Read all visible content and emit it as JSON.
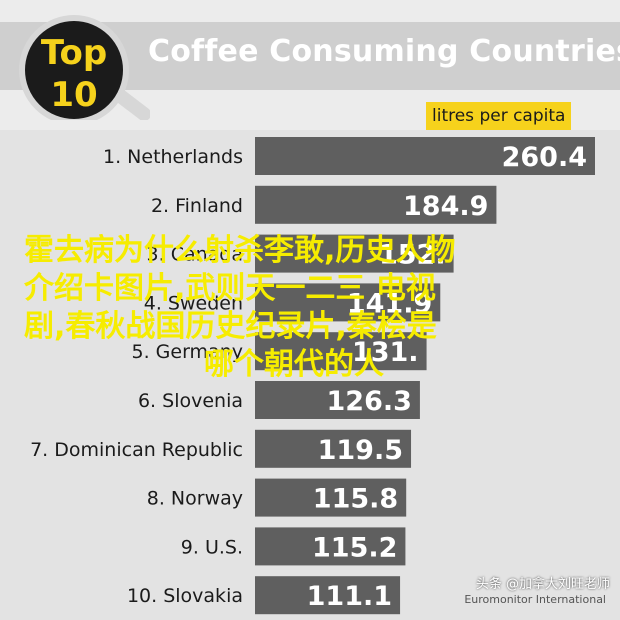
{
  "header": {
    "logo_top": "Top",
    "logo_num": "10",
    "title": "Coffee Consuming Countries",
    "unit_label": "litres per capita"
  },
  "chart_data": {
    "type": "bar",
    "orientation": "horizontal",
    "title": "Coffee Consuming Countries",
    "unit": "litres per capita",
    "categories": [
      "1. Netherlands",
      "2. Finland",
      "3. Canada",
      "4. Sweden",
      "5. Germany",
      "6. Slovenia",
      "7. Dominican Republic",
      "8. Norway",
      "9. U.S.",
      "10. Slovakia"
    ],
    "values": [
      260.4,
      184.9,
      152.1,
      141.9,
      131.4,
      126.3,
      119.5,
      115.8,
      115.2,
      111.1
    ],
    "value_labels": [
      "260.4",
      "184.9",
      "152.",
      "141.9",
      "131.",
      "126.3",
      "119.5",
      "115.8",
      "115.2",
      "111.1"
    ],
    "colors": {
      "bar": "#5f5f5f",
      "value_text": "#ffffff",
      "accent": "#f6d21c",
      "background": "#e3e3e3"
    }
  },
  "overlay": {
    "lines": [
      "霍去病为什么射杀李敢,历史人物",
      "介绍卡图片,武则天一二三 电视",
      "剧,春秋战国历史纪录片,秦桧是",
      "哪个朝代的人"
    ]
  },
  "source": "Euromonitor International",
  "watermark": "头条 @加拿大刘旺老师"
}
